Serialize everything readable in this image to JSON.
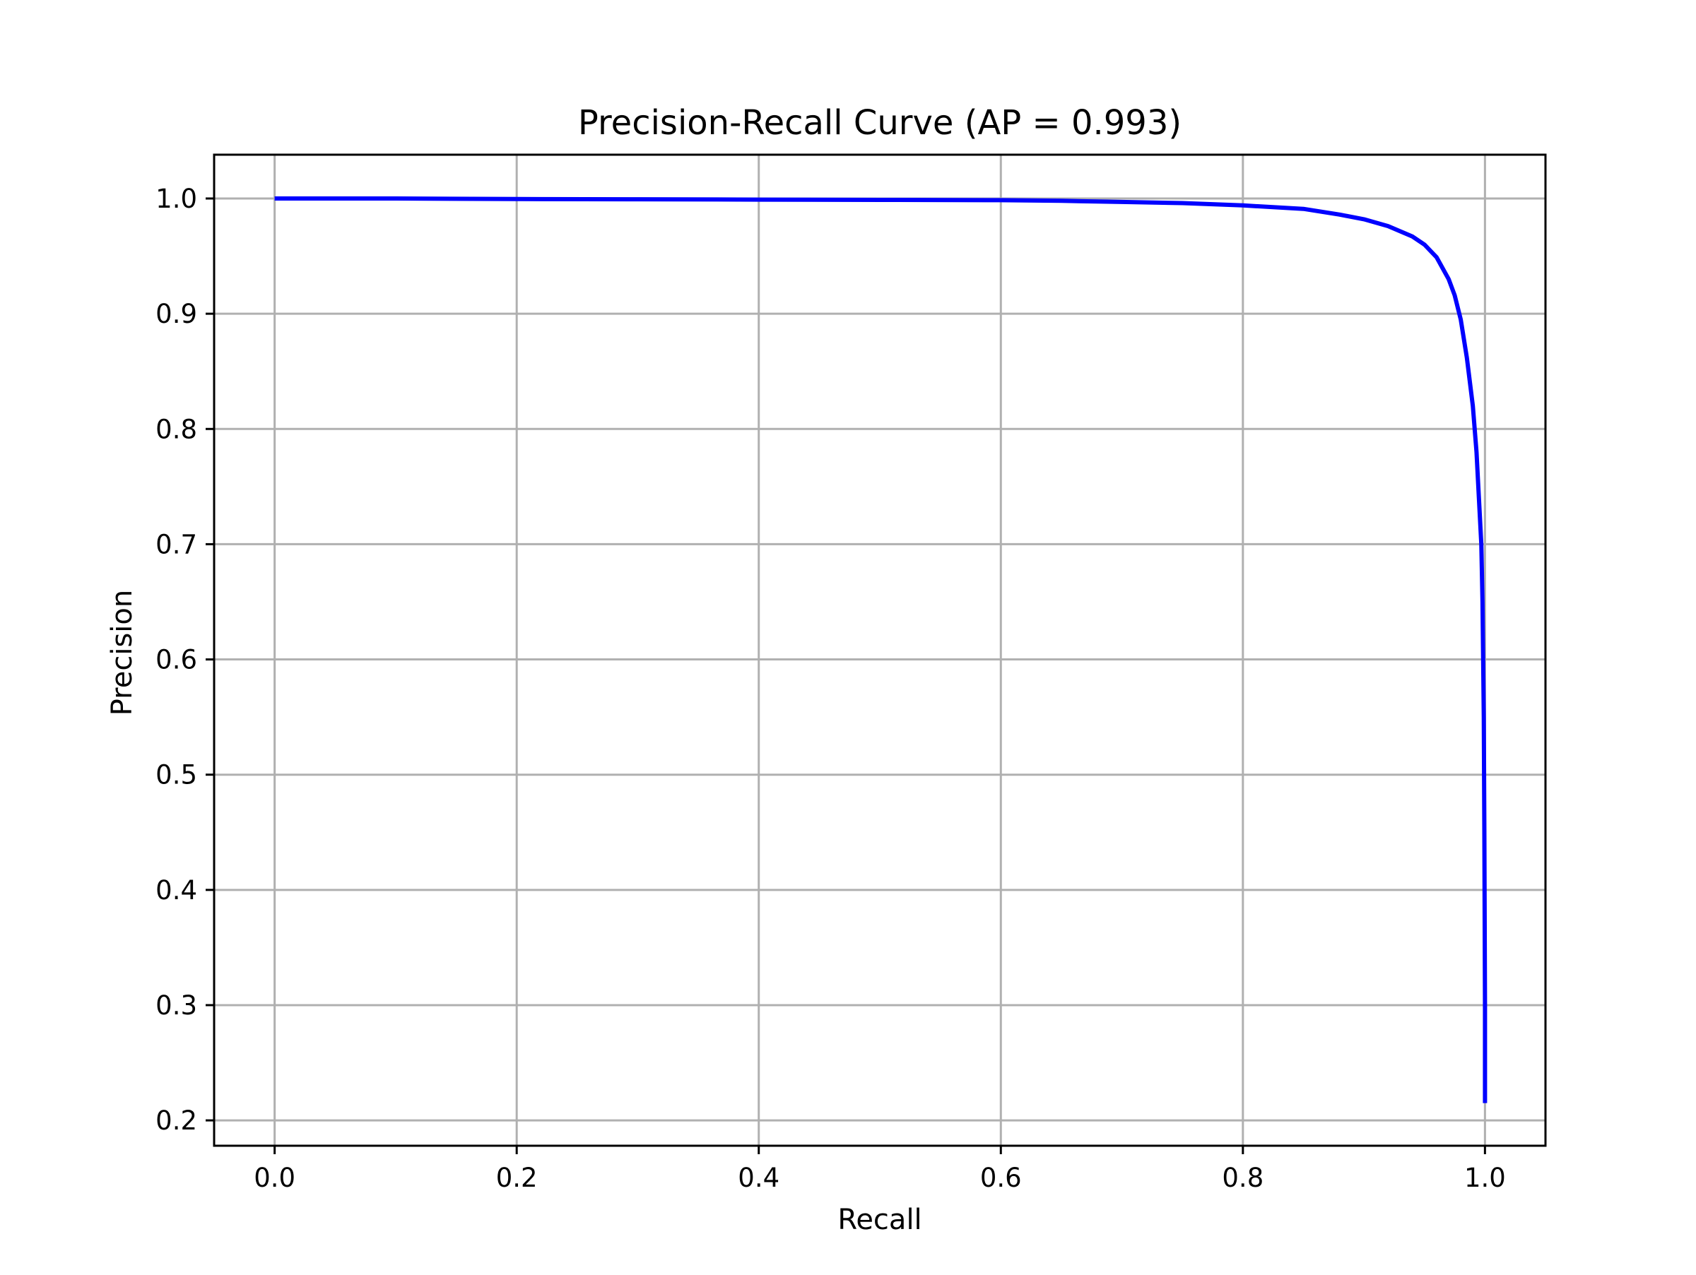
{
  "chart_data": {
    "type": "line",
    "title": "Precision-Recall Curve (AP = 0.993)",
    "xlabel": "Recall",
    "ylabel": "Precision",
    "xlim": [
      -0.05,
      1.05
    ],
    "ylim": [
      0.178,
      1.038
    ],
    "xticks": [
      0.0,
      0.2,
      0.4,
      0.6,
      0.8,
      1.0
    ],
    "xtick_labels": [
      "0.0",
      "0.2",
      "0.4",
      "0.6",
      "0.8",
      "1.0"
    ],
    "yticks": [
      0.2,
      0.3,
      0.4,
      0.5,
      0.6,
      0.7,
      0.8,
      0.9,
      1.0
    ],
    "ytick_labels": [
      "0.2",
      "0.3",
      "0.4",
      "0.5",
      "0.6",
      "0.7",
      "0.8",
      "0.9",
      "1.0"
    ],
    "grid": true,
    "legend": "none",
    "series": [
      {
        "color": "#0000ff",
        "x": [
          0.0,
          0.1,
          0.2,
          0.3,
          0.4,
          0.5,
          0.6,
          0.65,
          0.7,
          0.75,
          0.8,
          0.85,
          0.88,
          0.9,
          0.92,
          0.94,
          0.95,
          0.96,
          0.97,
          0.975,
          0.98,
          0.985,
          0.99,
          0.993,
          0.995,
          0.997,
          0.998,
          0.999,
          0.9995,
          1.0,
          1.0
        ],
        "y": [
          1.0,
          1.0,
          0.9995,
          0.9993,
          0.999,
          0.9988,
          0.9985,
          0.998,
          0.997,
          0.996,
          0.994,
          0.991,
          0.986,
          0.982,
          0.976,
          0.967,
          0.96,
          0.949,
          0.93,
          0.916,
          0.895,
          0.862,
          0.82,
          0.78,
          0.74,
          0.7,
          0.65,
          0.55,
          0.45,
          0.3,
          0.215
        ]
      }
    ]
  }
}
